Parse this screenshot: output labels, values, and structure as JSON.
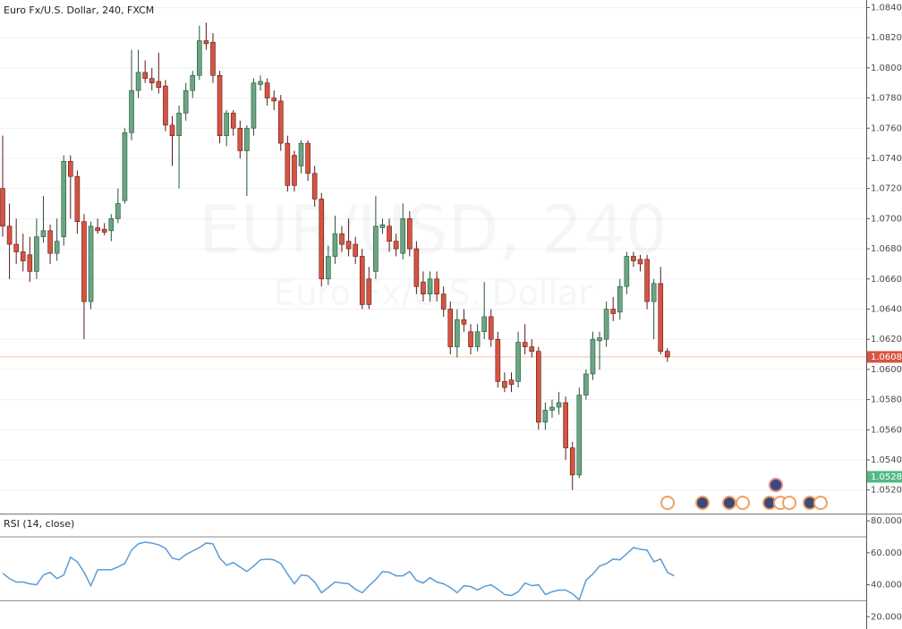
{
  "chart_data": [
    {
      "type": "candlestick",
      "title": "Euro Fx/U.S. Dollar, 240, FXCM",
      "watermark": "EUR/USD, 240",
      "watermark_subtitle": "Euro Fx/U.S. Dollar",
      "up_color": "#6ba583",
      "down_color": "#d75442",
      "open": [
        1.072,
        1.0695,
        1.0683,
        1.0678,
        1.0676,
        1.0665,
        1.0688,
        1.0692,
        1.0677,
        1.0688,
        1.0738,
        1.0728,
        1.0698,
        1.0645,
        1.0694,
        1.0693,
        1.0692,
        1.07,
        1.0712,
        1.0757,
        1.0785,
        1.0797,
        1.0793,
        1.0791,
        1.0788,
        1.0762,
        1.0755,
        1.077,
        1.0785,
        1.0795,
        1.0818,
        1.0817,
        1.0795,
        1.0755,
        1.077,
        1.076,
        1.0745,
        1.076,
        1.0789,
        1.079,
        1.078,
        1.0778,
        1.075,
        1.0742,
        1.0735,
        1.075,
        1.073,
        1.0713,
        1.066,
        1.0675,
        1.069,
        1.0685,
        1.0683,
        1.0675,
        1.066,
        1.0665,
        1.0694,
        1.0695,
        1.0685,
        1.0677,
        1.07,
        1.068,
        1.0658,
        1.065,
        1.066,
        1.065,
        1.064,
        1.0615,
        1.0633,
        1.0625,
        1.0615,
        1.0625,
        1.0635,
        1.062,
        1.0592,
        1.0593,
        1.0592,
        1.0618,
        1.0615,
        1.0612,
        1.0565,
        1.0573,
        1.0575,
        1.0578,
        1.0548,
        1.053,
        1.0583,
        1.0597,
        1.0619,
        1.062,
        1.064,
        1.0638,
        1.0655,
        1.0675,
        1.0673,
        1.0673,
        1.0645,
        1.0657,
        1.0612
      ],
      "high": [
        1.0755,
        1.071,
        1.07,
        1.069,
        1.0688,
        1.07,
        1.0715,
        1.0696,
        1.07,
        1.0742,
        1.0742,
        1.0732,
        1.0703,
        1.0698,
        1.07,
        1.0697,
        1.0703,
        1.072,
        1.076,
        1.0812,
        1.0812,
        1.0805,
        1.08,
        1.081,
        1.0792,
        1.0768,
        1.0775,
        1.079,
        1.0798,
        1.0828,
        1.083,
        1.0823,
        1.0798,
        1.0772,
        1.0772,
        1.0765,
        1.0762,
        1.0793,
        1.0795,
        1.0793,
        1.0785,
        1.0782,
        1.0755,
        1.0745,
        1.0752,
        1.0752,
        1.0735,
        1.0717,
        1.0682,
        1.0702,
        1.0695,
        1.07,
        1.0688,
        1.068,
        1.0668,
        1.0715,
        1.07,
        1.07,
        1.069,
        1.071,
        1.0705,
        1.0685,
        1.0665,
        1.0665,
        1.0665,
        1.0655,
        1.0645,
        1.064,
        1.064,
        1.063,
        1.063,
        1.0658,
        1.064,
        1.0625,
        1.0598,
        1.0598,
        1.0625,
        1.063,
        1.062,
        1.0615,
        1.0578,
        1.058,
        1.0585,
        1.0582,
        1.0552,
        1.0588,
        1.06,
        1.0625,
        1.0625,
        1.0645,
        1.0648,
        1.066,
        1.0678,
        1.0678,
        1.0676,
        1.0676,
        1.066,
        1.0668,
        1.0614
      ],
      "low": [
        1.0688,
        1.066,
        1.067,
        1.0665,
        1.0658,
        1.066,
        1.0684,
        1.067,
        1.0672,
        1.0682,
        1.07,
        1.069,
        1.062,
        1.064,
        1.069,
        1.0689,
        1.0685,
        1.0697,
        1.071,
        1.0752,
        1.078,
        1.079,
        1.0785,
        1.0783,
        1.0758,
        1.0735,
        1.072,
        1.0765,
        1.078,
        1.0792,
        1.0812,
        1.079,
        1.075,
        1.0748,
        1.0755,
        1.074,
        1.0715,
        1.0755,
        1.0785,
        1.0775,
        1.0772,
        1.0745,
        1.0718,
        1.0718,
        1.073,
        1.0725,
        1.0708,
        1.0655,
        1.0656,
        1.067,
        1.0678,
        1.0675,
        1.067,
        1.064,
        1.064,
        1.066,
        1.069,
        1.0678,
        1.0675,
        1.0673,
        1.0675,
        1.065,
        1.0645,
        1.0645,
        1.0645,
        1.0635,
        1.061,
        1.0608,
        1.0625,
        1.061,
        1.0612,
        1.062,
        1.0615,
        1.0588,
        1.0585,
        1.0585,
        1.0588,
        1.061,
        1.0608,
        1.056,
        1.056,
        1.0568,
        1.057,
        1.054,
        1.052,
        1.0528,
        1.058,
        1.0593,
        1.06,
        1.0615,
        1.0632,
        1.0633,
        1.065,
        1.0668,
        1.0665,
        1.064,
        1.062,
        1.061,
        1.0605
      ],
      "close": [
        1.0695,
        1.0683,
        1.0678,
        1.0672,
        1.0665,
        1.0688,
        1.0692,
        1.0677,
        1.0685,
        1.0738,
        1.0728,
        1.0698,
        1.0645,
        1.0695,
        1.0692,
        1.0691,
        1.07,
        1.071,
        1.0757,
        1.0785,
        1.0797,
        1.0793,
        1.079,
        1.0787,
        1.0762,
        1.0755,
        1.077,
        1.0785,
        1.0795,
        1.0818,
        1.0816,
        1.0795,
        1.0755,
        1.077,
        1.076,
        1.0745,
        1.076,
        1.079,
        1.0791,
        1.078,
        1.0778,
        1.075,
        1.0722,
        1.0722,
        1.075,
        1.073,
        1.0713,
        1.066,
        1.0675,
        1.069,
        1.0683,
        1.068,
        1.0675,
        1.0643,
        1.0643,
        1.0695,
        1.0696,
        1.0685,
        1.068,
        1.07,
        1.068,
        1.0655,
        1.065,
        1.066,
        1.065,
        1.064,
        1.0615,
        1.0633,
        1.063,
        1.0615,
        1.0625,
        1.0635,
        1.062,
        1.0592,
        1.0588,
        1.059,
        1.0618,
        1.0615,
        1.0612,
        1.0565,
        1.0573,
        1.0575,
        1.0578,
        1.0548,
        1.053,
        1.0583,
        1.0597,
        1.062,
        1.0621,
        1.064,
        1.0637,
        1.0655,
        1.0675,
        1.0672,
        1.067,
        1.0645,
        1.0657,
        1.0612,
        1.06083
      ],
      "ylim": [
        1.0505,
        1.0845
      ],
      "yticks": [
        {
          "value": 1.052,
          "label": "1.05200"
        },
        {
          "value": 1.054,
          "label": "1.05400"
        },
        {
          "value": 1.056,
          "label": "1.05600"
        },
        {
          "value": 1.058,
          "label": "1.05800"
        },
        {
          "value": 1.06,
          "label": "1.06000"
        },
        {
          "value": 1.062,
          "label": "1.06200"
        },
        {
          "value": 1.064,
          "label": "1.06400"
        },
        {
          "value": 1.066,
          "label": "1.06600"
        },
        {
          "value": 1.068,
          "label": "1.06800"
        },
        {
          "value": 1.07,
          "label": "1.07000"
        },
        {
          "value": 1.072,
          "label": "1.07200"
        },
        {
          "value": 1.074,
          "label": "1.07400"
        },
        {
          "value": 1.076,
          "label": "1.07600"
        },
        {
          "value": 1.078,
          "label": "1.07800"
        },
        {
          "value": 1.08,
          "label": "1.08000"
        },
        {
          "value": 1.082,
          "label": "1.08200"
        },
        {
          "value": 1.084,
          "label": "1.08400"
        }
      ],
      "grid": true,
      "price_markers": [
        {
          "value": 1.06083,
          "color": "#d75442",
          "line": true
        },
        {
          "value": 1.05288,
          "color": "#53b987",
          "line": false
        }
      ]
    },
    {
      "type": "line",
      "title": "RSI (14, close)",
      "color": "#5b9bd5",
      "values": [
        47.2,
        43.9,
        41.7,
        41.7,
        40.6,
        40.0,
        46.1,
        47.8,
        43.9,
        46.1,
        57.2,
        54.4,
        47.8,
        39.4,
        49.4,
        49.4,
        49.4,
        51.1,
        53.3,
        61.7,
        65.6,
        66.7,
        66.1,
        65.0,
        62.8,
        56.7,
        55.6,
        58.9,
        61.1,
        63.3,
        66.1,
        65.6,
        56.7,
        52.2,
        53.9,
        51.1,
        48.3,
        51.7,
        55.6,
        56.1,
        55.6,
        53.3,
        46.7,
        40.6,
        46.1,
        45.6,
        41.7,
        35.0,
        38.3,
        41.7,
        41.1,
        40.6,
        37.2,
        35.0,
        39.4,
        43.3,
        48.3,
        47.8,
        45.6,
        45.6,
        48.3,
        42.8,
        41.1,
        44.4,
        41.7,
        40.6,
        38.3,
        35.0,
        39.4,
        38.9,
        36.7,
        38.9,
        40.0,
        37.2,
        33.9,
        33.3,
        35.6,
        41.1,
        39.4,
        40.0,
        33.9,
        35.6,
        36.7,
        36.7,
        34.4,
        30.6,
        42.8,
        46.7,
        51.7,
        53.3,
        56.1,
        55.6,
        59.4,
        63.3,
        62.2,
        61.7,
        54.4,
        56.1,
        47.8,
        45.6
      ],
      "ylim": [
        14,
        84
      ],
      "yticks": [
        {
          "value": 20,
          "label": "20.00000"
        },
        {
          "value": 40,
          "label": "40.00000"
        },
        {
          "value": 60,
          "label": "60.00000"
        },
        {
          "value": 80,
          "label": "80.00000"
        }
      ],
      "levels": [
        70,
        30
      ]
    }
  ]
}
